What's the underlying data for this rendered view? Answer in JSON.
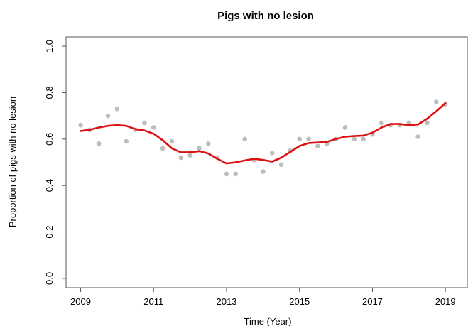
{
  "chart_data": {
    "type": "scatter",
    "title": "Pigs with no lesion",
    "xlabel": "Time (Year)",
    "ylabel": "Proportion of pigs with no lesion",
    "xlim": [
      2008.6,
      2019.6
    ],
    "ylim": [
      -0.04,
      1.04
    ],
    "x_ticks": [
      2009,
      2011,
      2013,
      2015,
      2017,
      2019
    ],
    "x_tick_labels": [
      "2009",
      "2011",
      "2013",
      "2015",
      "2017",
      "2019"
    ],
    "y_ticks": [
      0.0,
      0.2,
      0.4,
      0.6,
      0.8,
      1.0
    ],
    "y_tick_labels": [
      "0.0",
      "0.2",
      "0.4",
      "0.6",
      "0.8",
      "1.0"
    ],
    "grid": false,
    "series": [
      {
        "kind": "points",
        "color": "#bdbdbd",
        "x": [
          2009.0,
          2009.25,
          2009.5,
          2009.75,
          2010.0,
          2010.25,
          2010.5,
          2010.75,
          2011.0,
          2011.25,
          2011.5,
          2011.75,
          2012.0,
          2012.25,
          2012.5,
          2012.75,
          2013.0,
          2013.25,
          2013.5,
          2013.75,
          2014.0,
          2014.25,
          2014.5,
          2014.75,
          2015.0,
          2015.25,
          2015.5,
          2015.75,
          2016.0,
          2016.25,
          2016.5,
          2016.75,
          2017.0,
          2017.25,
          2017.5,
          2017.75,
          2018.0,
          2018.25,
          2018.5,
          2018.75,
          2019.0
        ],
        "y": [
          0.66,
          0.64,
          0.58,
          0.7,
          0.73,
          0.59,
          0.64,
          0.67,
          0.65,
          0.56,
          0.59,
          0.52,
          0.53,
          0.56,
          0.58,
          0.52,
          0.45,
          0.45,
          0.6,
          0.51,
          0.46,
          0.54,
          0.49,
          0.55,
          0.6,
          0.6,
          0.57,
          0.58,
          0.6,
          0.65,
          0.6,
          0.6,
          0.62,
          0.67,
          0.66,
          0.66,
          0.67,
          0.61,
          0.67,
          0.76,
          0.75
        ]
      },
      {
        "kind": "line",
        "color": "#dd1111",
        "x": [
          2009.0,
          2009.25,
          2009.5,
          2009.75,
          2010.0,
          2010.25,
          2010.5,
          2010.75,
          2011.0,
          2011.25,
          2011.5,
          2011.75,
          2012.0,
          2012.25,
          2012.5,
          2012.75,
          2013.0,
          2013.25,
          2013.5,
          2013.75,
          2014.0,
          2014.25,
          2014.5,
          2014.75,
          2015.0,
          2015.25,
          2015.5,
          2015.75,
          2016.0,
          2016.25,
          2016.5,
          2016.75,
          2017.0,
          2017.25,
          2017.5,
          2017.75,
          2018.0,
          2018.25,
          2018.5,
          2018.75,
          2019.0
        ],
        "y": [
          0.635,
          0.64,
          0.65,
          0.657,
          0.66,
          0.657,
          0.643,
          0.637,
          0.623,
          0.595,
          0.56,
          0.543,
          0.543,
          0.548,
          0.538,
          0.515,
          0.495,
          0.5,
          0.508,
          0.515,
          0.51,
          0.503,
          0.52,
          0.545,
          0.57,
          0.583,
          0.585,
          0.588,
          0.6,
          0.61,
          0.613,
          0.615,
          0.628,
          0.65,
          0.665,
          0.665,
          0.66,
          0.663,
          0.688,
          0.72,
          0.755
        ]
      }
    ]
  }
}
